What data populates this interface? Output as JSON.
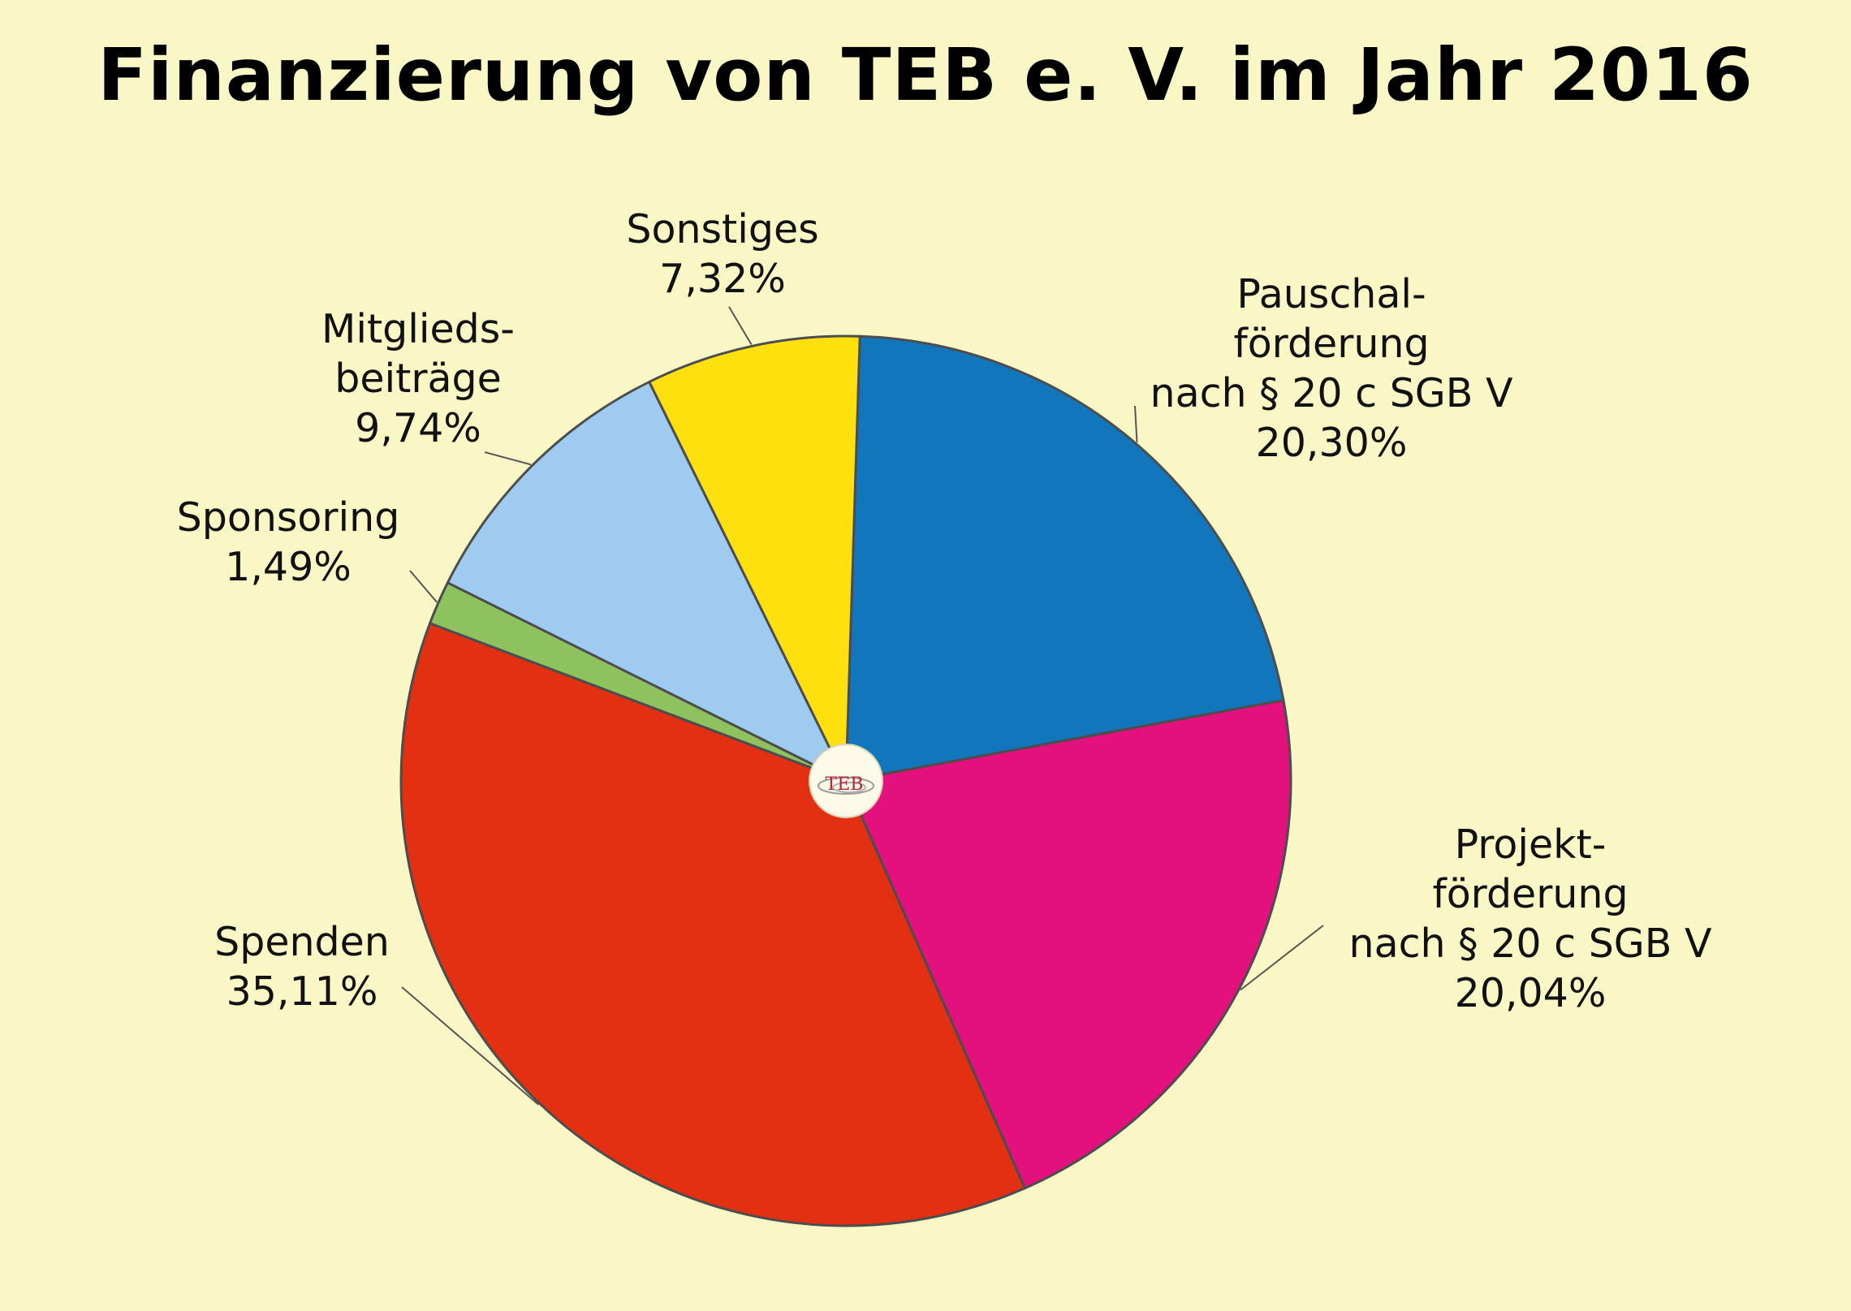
{
  "title": "Finanzierung von TEB e. V. im Jahr 2016",
  "logo_text": "TEB",
  "chart_data": {
    "type": "pie",
    "title": "Finanzierung von TEB e. V. im Jahr 2016",
    "slices": [
      {
        "key": "pauschal",
        "label_lines": [
          "Pauschal-",
          "förderung",
          "nach § 20 c SGB V"
        ],
        "value_label": "20,30%",
        "value": 20.3,
        "color": "#1176bc"
      },
      {
        "key": "projekt",
        "label_lines": [
          "Projekt-",
          "förderung",
          "nach § 20 c SGB V"
        ],
        "value_label": "20,04%",
        "value": 20.04,
        "color": "#e3107e"
      },
      {
        "key": "spenden",
        "label_lines": [
          "Spenden"
        ],
        "value_label": "35,11%",
        "value": 35.11,
        "color": "#e33012"
      },
      {
        "key": "sponsoring",
        "label_lines": [
          "Sponsoring"
        ],
        "value_label": "1,49%",
        "value": 1.49,
        "color": "#8dc25e"
      },
      {
        "key": "mitglieds",
        "label_lines": [
          "Mitglieds-",
          "beiträge"
        ],
        "value_label": "9,74%",
        "value": 9.74,
        "color": "#9ecbef"
      },
      {
        "key": "sonstiges",
        "label_lines": [
          "Sonstiges"
        ],
        "value_label": "7,32%",
        "value": 7.32,
        "color": "#fde00d"
      }
    ]
  }
}
